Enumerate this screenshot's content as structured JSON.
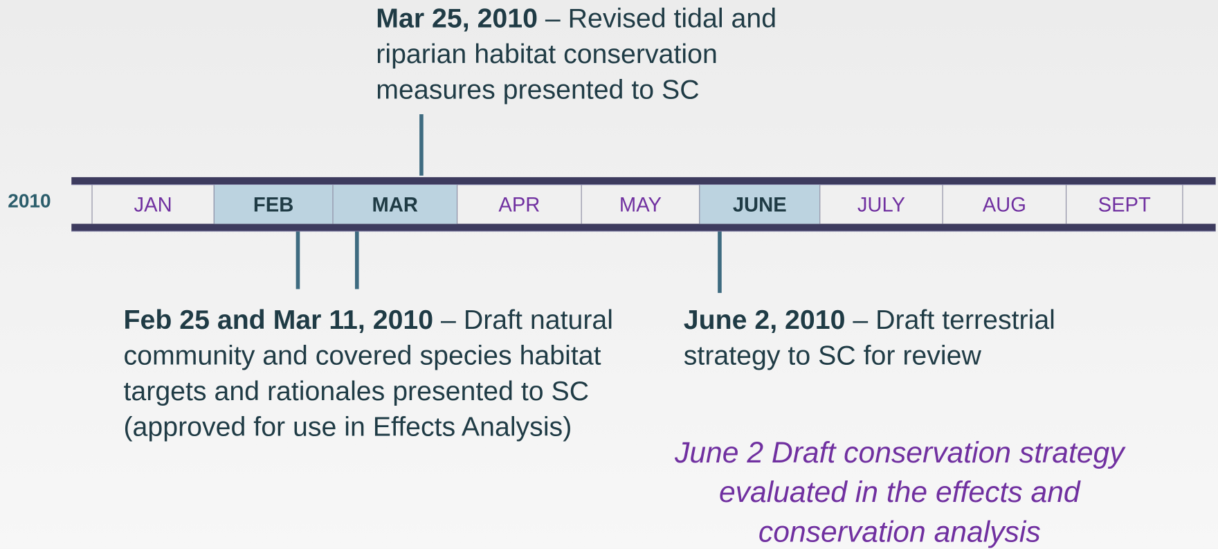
{
  "year": "2010",
  "months": [
    {
      "label": "JAN",
      "highlight": false
    },
    {
      "label": "FEB",
      "highlight": true
    },
    {
      "label": "MAR",
      "highlight": true
    },
    {
      "label": "APR",
      "highlight": false
    },
    {
      "label": "MAY",
      "highlight": false
    },
    {
      "label": "JUNE",
      "highlight": true
    },
    {
      "label": "JULY",
      "highlight": false
    },
    {
      "label": "AUG",
      "highlight": false
    },
    {
      "label": "SEPT",
      "highlight": false
    }
  ],
  "events": [
    {
      "date": "Mar 25, 2010",
      "text": "– Revised tidal and riparian habitat conservation measures presented to SC"
    },
    {
      "date": "Feb 25 and Mar 11, 2010",
      "text": "– Draft natural community and covered species habitat targets and rationales presented to SC (approved for use in Effects Analysis)"
    },
    {
      "date": "June 2, 2010",
      "text": "– Draft terrestrial strategy to SC for review"
    }
  ],
  "note": "June 2 Draft conservation strategy evaluated in the effects and conservation analysis"
}
